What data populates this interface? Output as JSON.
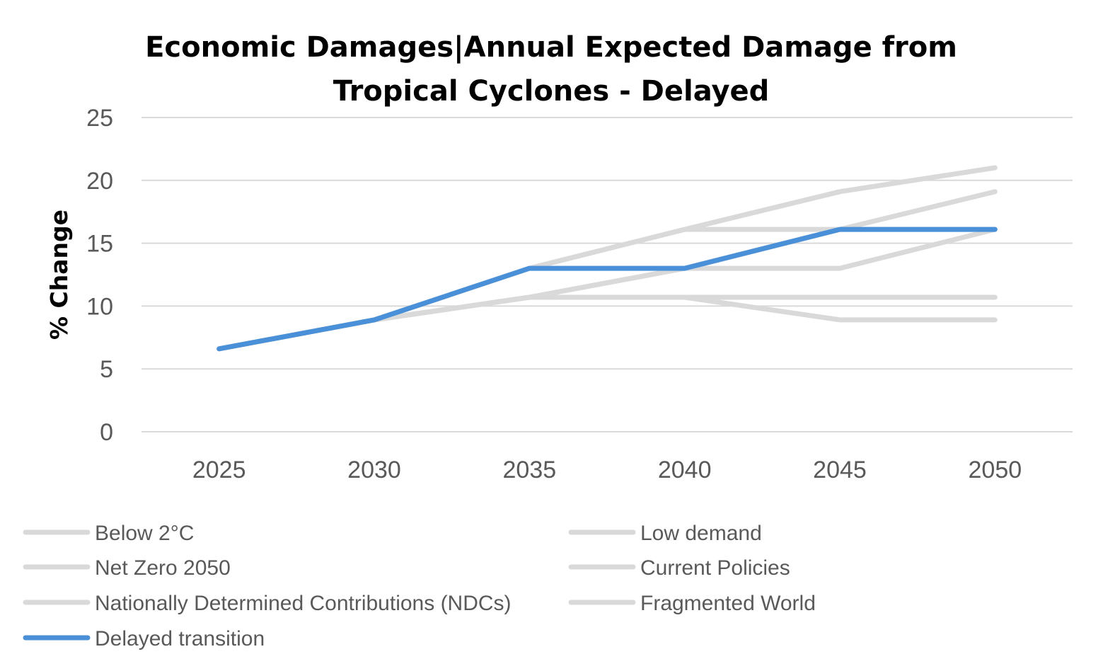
{
  "chart_data": {
    "type": "line",
    "title_lines": [
      "Economic Damages|Annual Expected Damage from",
      "Tropical Cyclones - Delayed"
    ],
    "xlabel": "",
    "ylabel": "% Change",
    "categories": [
      "2025",
      "2030",
      "2035",
      "2040",
      "2045",
      "2050"
    ],
    "ylim": [
      0,
      25
    ],
    "yticks": [
      "0",
      "5",
      "10",
      "15",
      "20",
      "25"
    ],
    "grid": true,
    "legend_position": "bottom",
    "series": [
      {
        "name": "Below 2°C",
        "color": "#d9d9d9",
        "values": [
          6.6,
          8.9,
          10.7,
          13.0,
          13.0,
          16.1
        ]
      },
      {
        "name": "Low demand",
        "color": "#d9d9d9",
        "values": [
          6.6,
          8.9,
          10.7,
          10.7,
          10.7,
          10.7
        ]
      },
      {
        "name": "Net Zero 2050",
        "color": "#d9d9d9",
        "values": [
          6.6,
          8.9,
          10.7,
          10.7,
          8.9,
          8.9
        ]
      },
      {
        "name": "Current Policies",
        "color": "#d9d9d9",
        "values": [
          6.6,
          8.9,
          10.7,
          13.0,
          16.1,
          19.1
        ]
      },
      {
        "name": "Nationally Determined Contributions (NDCs)",
        "color": "#d9d9d9",
        "values": [
          6.6,
          8.9,
          13.0,
          16.1,
          19.1,
          21.0
        ]
      },
      {
        "name": "Fragmented World",
        "color": "#d9d9d9",
        "values": [
          6.6,
          8.9,
          13.0,
          16.1,
          16.1,
          16.1
        ]
      },
      {
        "name": "Delayed transition",
        "color": "#4a90d9",
        "values": [
          6.6,
          8.9,
          13.0,
          13.0,
          16.1,
          16.1
        ]
      }
    ]
  }
}
